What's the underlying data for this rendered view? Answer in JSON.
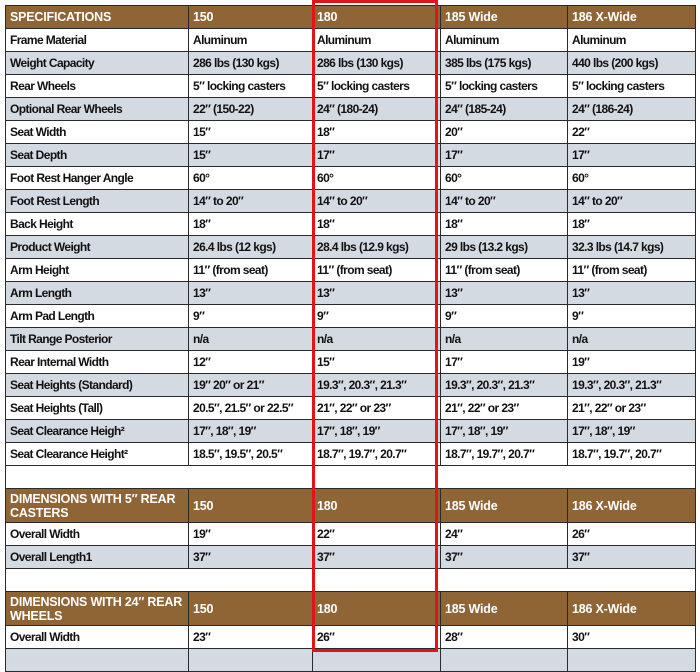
{
  "specs": {
    "header": [
      "SPECIFICATIONS",
      "150",
      "180",
      "185 Wide",
      "186 X-Wide"
    ],
    "rows": [
      [
        "Frame Material",
        "Aluminum",
        "Aluminum",
        "Aluminum",
        "Aluminum"
      ],
      [
        "Weight Capacity",
        "286 lbs (130 kgs)",
        "286 lbs (130 kgs)",
        "385 lbs (175 kgs)",
        "440 lbs (200 kgs)"
      ],
      [
        "Rear Wheels",
        "5″ locking casters",
        "5″ locking casters",
        "5″ locking casters",
        "5″ locking casters"
      ],
      [
        "Optional Rear Wheels",
        "22″ (150-22)",
        "24″ (180-24)",
        "24″ (185-24)",
        "24″ (186-24)"
      ],
      [
        "Seat Width",
        "15″",
        "18″",
        "20″",
        "22″"
      ],
      [
        "Seat Depth",
        "15″",
        "17″",
        "17″",
        "17″"
      ],
      [
        "Foot Rest Hanger Angle",
        "60°",
        "60°",
        "60°",
        "60°"
      ],
      [
        "Foot Rest Length",
        "14″ to 20″",
        "14″ to 20″",
        "14″ to 20″",
        "14″ to 20″"
      ],
      [
        "Back Height",
        "18″",
        "18″",
        "18″",
        "18″"
      ],
      [
        "Product Weight",
        "26.4 lbs (12 kgs)",
        "28.4 lbs (12.9 kgs)",
        "29 lbs (13.2 kgs)",
        "32.3 lbs (14.7 kgs)"
      ],
      [
        "Arm Height",
        "11″ (from seat)",
        "11″ (from seat)",
        "11″ (from seat)",
        "11″ (from seat)"
      ],
      [
        "Arm Length",
        "13″",
        "13″",
        "13″",
        "13″"
      ],
      [
        "Arm Pad Length",
        "9″",
        "9″",
        "9″",
        "9″"
      ],
      [
        "Tilt Range Posterior",
        "n/a",
        "n/a",
        "n/a",
        "n/a"
      ],
      [
        "Rear Internal Width",
        "12″",
        "15″",
        "17″",
        "19″"
      ],
      [
        "Seat Heights (Standard)",
        "19″ 20″ or 21″",
        "19.3″, 20.3″, 21.3″",
        "19.3″, 20.3″, 21.3″",
        "19.3″, 20.3″, 21.3″"
      ],
      [
        "Seat Heights (Tall)",
        "20.5″, 21.5″ or 22.5″",
        "21″, 22″ or 23″",
        "21″, 22″ or 23″",
        "21″, 22″ or 23″"
      ],
      [
        "Seat Clearance Heigh²",
        "17″, 18″, 19″",
        "17″, 18″, 19″",
        "17″, 18″, 19″",
        "17″, 18″, 19″"
      ],
      [
        "Seat Clearance Height²",
        "18.5″, 19.5″, 20.5″",
        "18.7″, 19.7″, 20.7″",
        "18.7″, 19.7″, 20.7″",
        "18.7″, 19.7″, 20.7″"
      ]
    ]
  },
  "casters": {
    "header": [
      "DIMENSIONS WITH 5″ REAR CASTERS",
      "150",
      "180",
      "185 Wide",
      "186 X-Wide"
    ],
    "rows": [
      [
        "Overall Width",
        "19″",
        "22″",
        "24″",
        "26″"
      ],
      [
        "Overall Length1",
        "37″",
        "37″",
        "37″",
        "37″"
      ]
    ]
  },
  "wheels": {
    "header": [
      "DIMENSIONS WITH 24″ REAR WHEELS",
      "150",
      "180",
      "185 Wide",
      "186 X-Wide"
    ],
    "rows": [
      [
        "Overall Width",
        "23″",
        "26″",
        "28″",
        "30″"
      ]
    ]
  },
  "colors": {
    "header_brown": "#8f6536",
    "row_gray": "#d4dae2",
    "highlight_red": "#e3131b"
  }
}
